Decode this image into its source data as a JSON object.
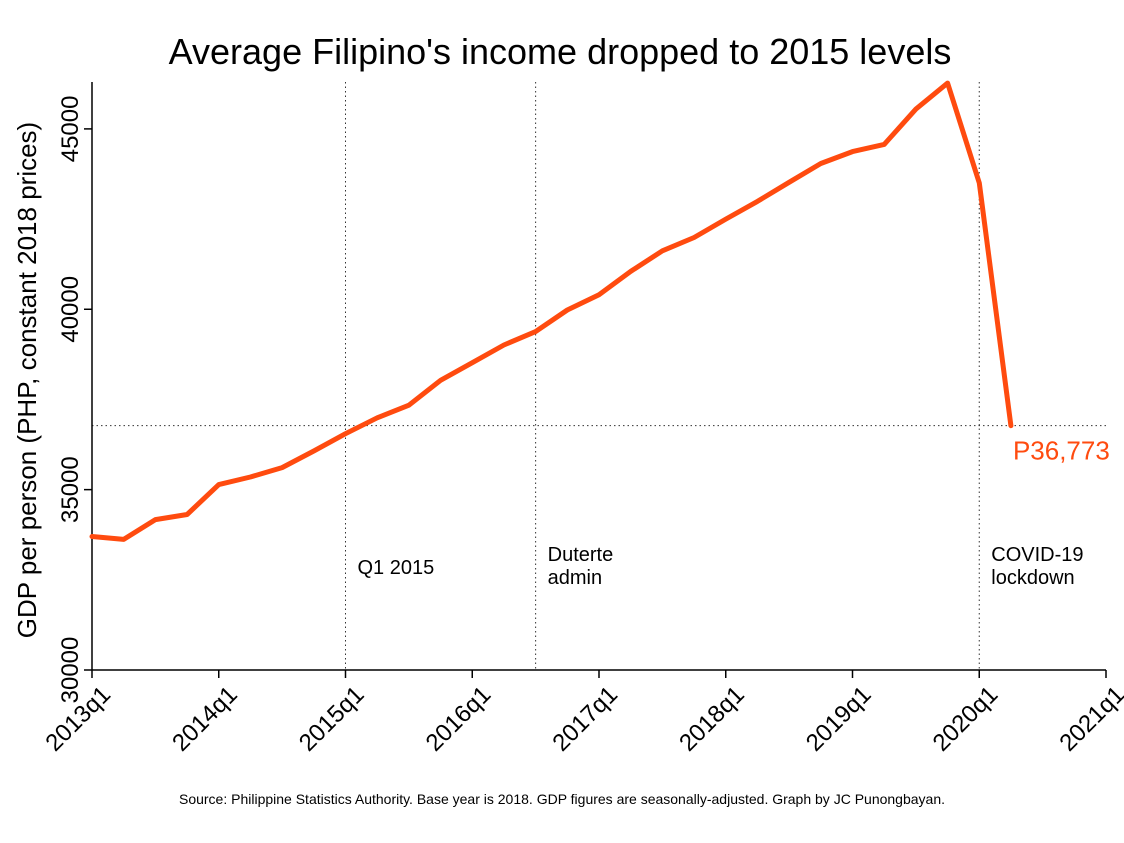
{
  "chart_data": {
    "type": "line",
    "title": "Average Filipino's income dropped to 2015 levels",
    "xlabel": "",
    "ylabel": "GDP per person (PHP, constant 2018 prices)",
    "source": "Source: Philippine Statistics Authority. Base year is 2018. GDP figures are seasonally-adjusted. Graph by JC Punongbayan.",
    "x_ticks": [
      "2013q1",
      "2014q1",
      "2015q1",
      "2016q1",
      "2017q1",
      "2018q1",
      "2019q1",
      "2020q1",
      "2021q1"
    ],
    "y_ticks": [
      "30000",
      "35000",
      "40000",
      "45000"
    ],
    "xlim": [
      "2013q1",
      "2021q1"
    ],
    "ylim": [
      30000,
      46300
    ],
    "grid": false,
    "line_color": "#ff4b0f",
    "x": [
      "2013q1",
      "2013q2",
      "2013q3",
      "2013q4",
      "2014q1",
      "2014q2",
      "2014q3",
      "2014q4",
      "2015q1",
      "2015q2",
      "2015q3",
      "2015q4",
      "2016q1",
      "2016q2",
      "2016q3",
      "2016q4",
      "2017q1",
      "2017q2",
      "2017q3",
      "2017q4",
      "2018q1",
      "2018q2",
      "2018q3",
      "2018q4",
      "2019q1",
      "2019q2",
      "2019q3",
      "2019q4",
      "2020q1",
      "2020q2"
    ],
    "values": [
      33700,
      33620,
      34170,
      34310,
      35140,
      35350,
      35610,
      36070,
      36550,
      36990,
      37340,
      38030,
      38520,
      39010,
      39380,
      39980,
      40400,
      41050,
      41620,
      41990,
      42500,
      42990,
      43520,
      44040,
      44370,
      44570,
      45550,
      46270,
      43500,
      36773
    ],
    "reference_lines": [
      {
        "x": "2015q1",
        "label": "Q1 2015"
      },
      {
        "x": "2016q3",
        "label": "Duterte admin"
      },
      {
        "x": "2020q1",
        "label": "COVID-19 lockdown"
      }
    ],
    "reference_hline": 36773,
    "end_label": "P36,773"
  }
}
